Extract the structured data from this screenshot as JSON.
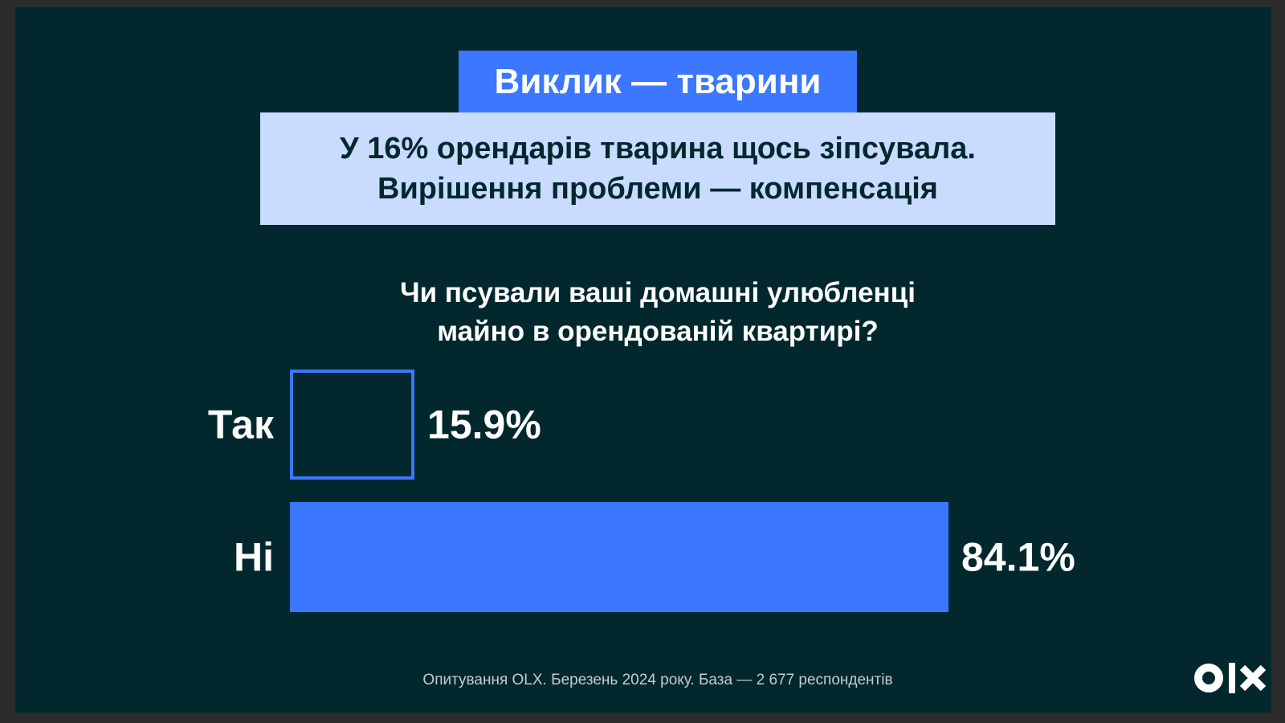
{
  "title": "Виклик — тварини",
  "subtitle": {
    "line1": "У 16% орендарів тварина щось зіпсувала.",
    "line2": "Вирішення проблеми — компенсація"
  },
  "chart_data": {
    "type": "bar",
    "orientation": "horizontal",
    "title": "Чи псували ваші домашні улюбленці майно в орендованій квартирі?",
    "title_lines": [
      "Чи псували ваші домашні улюбленці",
      "майно в орендованій квартирі?"
    ],
    "categories": [
      "Так",
      "Ні"
    ],
    "values": [
      15.9,
      84.1
    ],
    "value_labels": [
      "15.9%",
      "84.1%"
    ],
    "unit": "%",
    "xlim": [
      0,
      84.1
    ],
    "grid": false,
    "legend": "none",
    "bar_styles": [
      "outline",
      "filled"
    ]
  },
  "footnote": "Опитування OLX. Березень 2024 року. База — 2 677 респондентів",
  "logo": {
    "icon": "olx-logo-icon",
    "text": "OLX"
  },
  "colors": {
    "background": "#02282e",
    "outer_frame": "#2b2b2b",
    "accent": "#3b77ff",
    "subtitle_background": "#c9dbff",
    "text": "#ffffff",
    "footnote": "#c3ccce"
  }
}
